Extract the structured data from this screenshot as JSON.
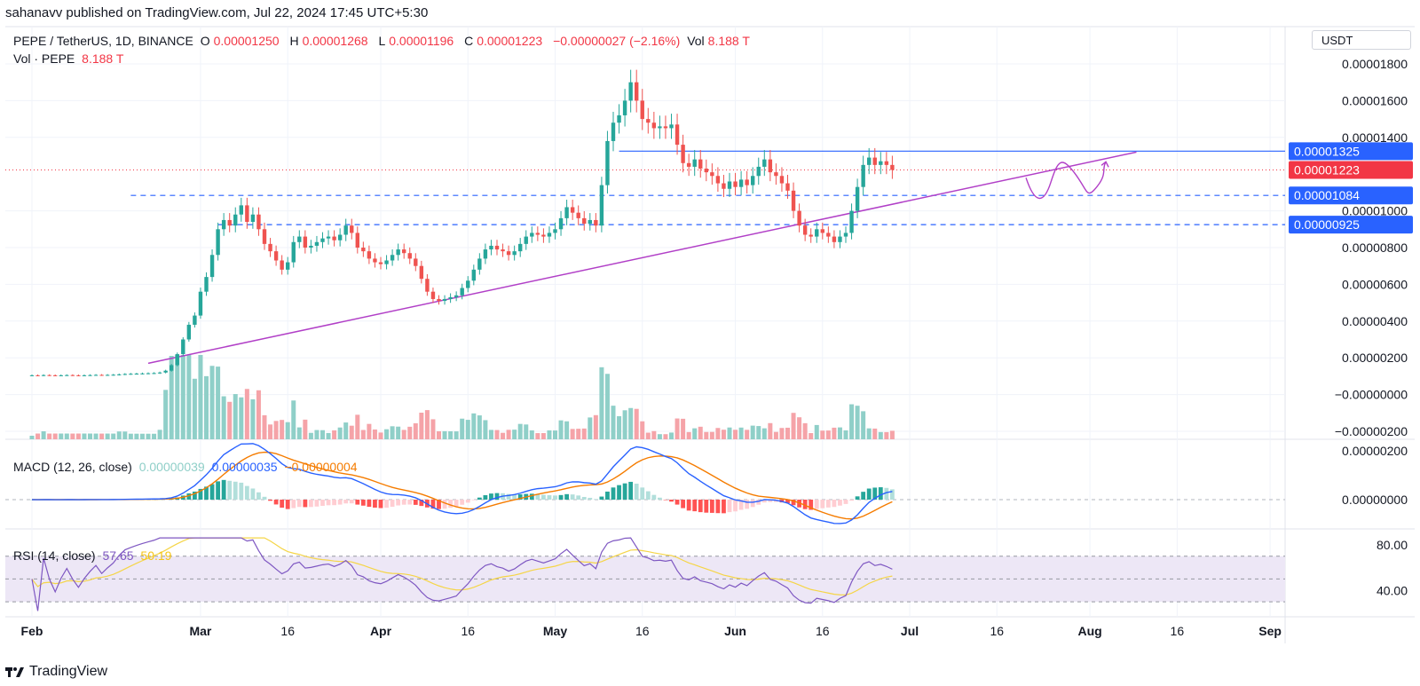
{
  "header": {
    "published": "sahanavv published on TradingView.com, Jul 22, 2024 17:45 UTC+5:30"
  },
  "legend": {
    "symbol": "PEPE / TetherUS, 1D, BINANCE",
    "o_label": "O",
    "o_value": "0.00001250",
    "h_label": "H",
    "h_value": "0.00001268",
    "l_label": "L",
    "l_value": "0.00001196",
    "c_label": "C",
    "c_value": "0.00001223",
    "change": "−0.00000027 (−2.16%)",
    "vol_label": "Vol",
    "vol_value": "8.188 T",
    "vol_series": "Vol · PEPE",
    "vol_series_value": "8.188 T"
  },
  "macd_legend": {
    "label": "MACD (12, 26, close)",
    "hist": "0.00000039",
    "macd": "0.00000035",
    "signal": "−0.00000004"
  },
  "rsi_legend": {
    "label": "RSI (14, close)",
    "rsi": "57.65",
    "ma": "50.19"
  },
  "price_scale": {
    "currency": "USDT"
  },
  "footer": {
    "brand": "TradingView"
  },
  "colors": {
    "up": "#26a69a",
    "down": "#ef5350",
    "vol_up": "#8fcfc8",
    "vol_down": "#f5a3a8",
    "hline": "#2962ff",
    "trend": "#b13fc7",
    "macd": "#2962ff",
    "signal": "#f57c00",
    "rsi": "#7e57c2",
    "rsi_ma": "#f5d547",
    "rsi_band": "#ede7f6"
  },
  "chart_data": [
    {
      "type": "candlestick",
      "title": "PEPE / TetherUS, 1D, BINANCE",
      "y_ticks": [
        "0.00001800",
        "0.00001600",
        "0.00001400",
        "0.00001000",
        "0.00000800",
        "0.00000600",
        "0.00000400",
        "0.00000200",
        "−0.00000000",
        "−0.00000200"
      ],
      "ylim": [
        -2.3e-06,
        1.88e-05
      ],
      "x_ticks": [
        "Feb",
        "Mar",
        "16",
        "Apr",
        "16",
        "May",
        "16",
        "Jun",
        "16",
        "Jul",
        "16",
        "Aug",
        "16",
        "Sep"
      ],
      "price_labels": [
        {
          "value": 1.325e-05,
          "label": "0.00001325",
          "color": "#2962ff"
        },
        {
          "value": 1.223e-05,
          "label": "0.00001223",
          "color": "#f23645"
        },
        {
          "value": 1.084e-05,
          "label": "0.00001084",
          "color": "#2962ff"
        },
        {
          "value": 9.25e-06,
          "label": "0.00000925",
          "color": "#2962ff"
        }
      ],
      "horizontal_lines": [
        {
          "value": 1.325e-05,
          "style": "solid",
          "from": "May 12"
        },
        {
          "value": 1.084e-05,
          "style": "dashed",
          "from": "Feb 18"
        },
        {
          "value": 9.25e-06,
          "style": "dashed",
          "from": "Mar 4"
        }
      ],
      "trendline": {
        "from": [
          "Feb 21",
          1.7e-06
        ],
        "to": [
          "Aug 8",
          1.32e-05
        ]
      },
      "closes_approx": [
        1.05e-06,
        1.04e-06,
        1.06e-06,
        1.05e-06,
        1.04e-06,
        1.05e-06,
        1.06e-06,
        1.05e-06,
        1.04e-06,
        1.05e-06,
        1.06e-06,
        1.07e-06,
        1.06e-06,
        1.07e-06,
        1.08e-06,
        1.1e-06,
        1.12e-06,
        1.13e-06,
        1.14e-06,
        1.15e-06,
        1.16e-06,
        1.17e-06,
        1.2e-06,
        1.3e-06,
        1.6e-06,
        2.2e-06,
        3e-06,
        3.8e-06,
        4.3e-06,
        5.6e-06,
        6.4e-06,
        7.6e-06,
        9e-06,
        9.5e-06,
        9.2e-06,
        9.8e-06,
        1.03e-05,
        9.4e-06,
        9.8e-06,
        9e-06,
        8.2e-06,
        7.8e-06,
        7.3e-06,
        6.8e-06,
        7.2e-06,
        8.3e-06,
        8.6e-06,
        8e-06,
        8.1e-06,
        8.3e-06,
        8.5e-06,
        8.6e-06,
        8.4e-06,
        8.7e-06,
        9.2e-06,
        8.8e-06,
        8e-06,
        7.8e-06,
        7.4e-06,
        7.2e-06,
        7.1e-06,
        7.3e-06,
        7.6e-06,
        7.9e-06,
        7.7e-06,
        7.4e-06,
        7e-06,
        6.3e-06,
        5.6e-06,
        5.2e-06,
        5.1e-06,
        5.2e-06,
        5.3e-06,
        5.4e-06,
        5.8e-06,
        6.2e-06,
        6.8e-06,
        7.4e-06,
        7.9e-06,
        8.1e-06,
        7.9e-06,
        7.8e-06,
        7.6e-06,
        7.8e-06,
        8.2e-06,
        8.6e-06,
        8.8e-06,
        8.7e-06,
        8.6e-06,
        8.8e-06,
        9e-06,
        9.6e-06,
        1.02e-05,
        9.9e-06,
        9.6e-06,
        9.3e-06,
        9.5e-06,
        9.2e-06,
        1.14e-05,
        1.38e-05,
        1.48e-05,
        1.52e-05,
        1.6e-05,
        1.7e-05,
        1.6e-05,
        1.5e-05,
        1.48e-05,
        1.45e-05,
        1.46e-05,
        1.45e-05,
        1.47e-05,
        1.36e-05,
        1.26e-05,
        1.24e-05,
        1.28e-05,
        1.23e-05,
        1.21e-05,
        1.19e-05,
        1.15e-05,
        1.12e-05,
        1.16e-05,
        1.13e-05,
        1.17e-05,
        1.14e-05,
        1.19e-05,
        1.24e-05,
        1.28e-05,
        1.21e-05,
        1.19e-05,
        1.15e-05,
        1.11e-05,
        1e-05,
        9.2e-06,
        8.7e-06,
        8.6e-06,
        9e-06,
        8.8e-06,
        8.6e-06,
        8.3e-06,
        8.6e-06,
        8.8e-06,
        1e-05,
        1.13e-05,
        1.25e-05,
        1.29e-05,
        1.25e-05,
        1.27e-05,
        1.25e-05,
        1.223e-05
      ]
    },
    {
      "type": "line",
      "title": "MACD (12, 26, close)",
      "y_ticks": [
        "0.00000200",
        "0.00000000"
      ],
      "series": [
        {
          "name": "MACD",
          "last": 3.5e-07
        },
        {
          "name": "Signal",
          "last": -4e-08
        },
        {
          "name": "Histogram",
          "last": 3.9e-07
        }
      ]
    },
    {
      "type": "line",
      "title": "RSI (14, close)",
      "y_ticks": [
        "80.00",
        "40.00"
      ],
      "series": [
        {
          "name": "RSI",
          "last": 57.65
        },
        {
          "name": "RSI MA",
          "last": 50.19
        }
      ]
    }
  ]
}
